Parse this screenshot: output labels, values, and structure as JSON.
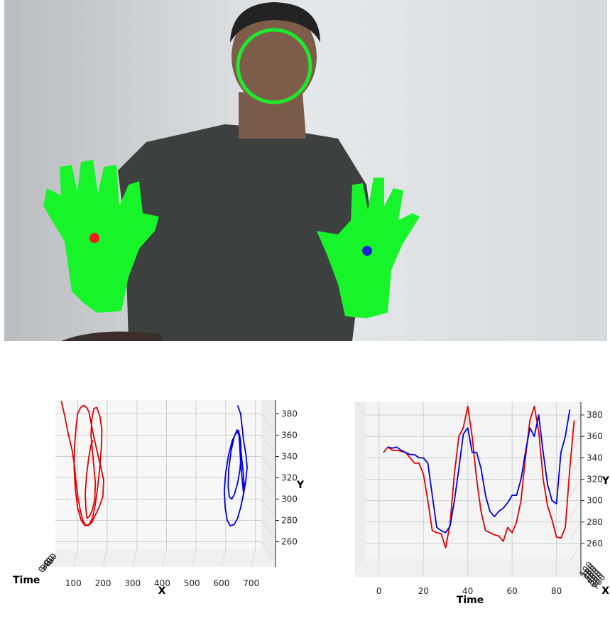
{
  "photo": {
    "colors": {
      "wall": "#dde1e4",
      "shirt": "#3c403f",
      "skin": "#7a5a48",
      "mask": "#17f52a",
      "face_ring": "#1fe82e",
      "left_marker": "#ee1c1c",
      "right_marker": "#1722d8"
    }
  },
  "chart_data": [
    {
      "type": "line3d",
      "view": "front (X vs Y)",
      "xlabel": "X",
      "ylabel": "Y",
      "zlabel": "Time",
      "xticks": [
        "100",
        "200",
        "300",
        "400",
        "500",
        "600",
        "700"
      ],
      "yticks": [
        "260",
        "280",
        "300",
        "320",
        "340",
        "360",
        "380"
      ],
      "zticks": [
        "0",
        "20",
        "40",
        "60",
        "80"
      ],
      "xlim": [
        25,
        720
      ],
      "ylim": [
        253,
        393
      ],
      "grid": true,
      "series": [
        {
          "color": "#e00000",
          "x": [
            45,
            55,
            68,
            82,
            90,
            95,
            102,
            110,
            118,
            125,
            135,
            148,
            160,
            172,
            185,
            188,
            170,
            155,
            145,
            138,
            130,
            120,
            110,
            100,
            95,
            90,
            88,
            92,
            100,
            112,
            125,
            138,
            150,
            160,
            168,
            175,
            180,
            182,
            175,
            165,
            155,
            148,
            145,
            150,
            155,
            160,
            158,
            150,
            140,
            132,
            128,
            126,
            130,
            138,
            146,
            152
          ],
          "y": [
            392,
            380,
            362,
            345,
            330,
            315,
            300,
            288,
            280,
            276,
            275,
            278,
            285,
            292,
            302,
            318,
            340,
            358,
            372,
            382,
            386,
            388,
            386,
            380,
            368,
            350,
            330,
            310,
            292,
            280,
            275,
            276,
            282,
            295,
            312,
            330,
            348,
            365,
            378,
            386,
            385,
            375,
            360,
            345,
            330,
            315,
            300,
            290,
            284,
            282,
            290,
            305,
            322,
            340,
            352,
            355
          ]
        },
        {
          "color": "#0000e0",
          "x": [
            640,
            650,
            655,
            660,
            668,
            672,
            668,
            660,
            650,
            640,
            628,
            615,
            605,
            598,
            595,
            600,
            610,
            622,
            635,
            645,
            650,
            652,
            648,
            640,
            630,
            620,
            612,
            608,
            610,
            618,
            628,
            638,
            645,
            650,
            655,
            660,
            662,
            660,
            655,
            650,
            646,
            643
          ],
          "y": [
            388,
            380,
            368,
            355,
            342,
            330,
            318,
            305,
            292,
            282,
            276,
            275,
            280,
            292,
            308,
            325,
            342,
            355,
            362,
            362,
            355,
            342,
            328,
            315,
            305,
            300,
            302,
            312,
            328,
            345,
            358,
            365,
            360,
            348,
            335,
            322,
            312,
            305,
            320,
            335,
            355,
            365
          ]
        }
      ]
    },
    {
      "type": "line3d",
      "view": "side (Time vs Y)",
      "xlabel": "Time",
      "ylabel": "Y",
      "zlabel": "X",
      "xticks": [
        "0",
        "20",
        "40",
        "60",
        "80"
      ],
      "yticks": [
        "260",
        "280",
        "300",
        "320",
        "340",
        "360",
        "380"
      ],
      "zticks": [
        "100",
        "200",
        "300",
        "400",
        "500",
        "600",
        "700"
      ],
      "xlim": [
        -6,
        91
      ],
      "ylim": [
        246,
        392
      ],
      "grid": true,
      "series": [
        {
          "color": "#e00000",
          "x": [
            2,
            4,
            6,
            8,
            10,
            12,
            14,
            16,
            18,
            20,
            22,
            24,
            26,
            28,
            30,
            32,
            34,
            36,
            38,
            40,
            42,
            44,
            46,
            48,
            50,
            52,
            54,
            56,
            58,
            60,
            62,
            64,
            66,
            68,
            70,
            72,
            74,
            76,
            78,
            80,
            82,
            84,
            86,
            88
          ],
          "y": [
            345,
            350,
            347,
            347,
            346,
            345,
            340,
            335,
            335,
            325,
            300,
            272,
            270,
            269,
            256,
            278,
            325,
            360,
            368,
            388,
            360,
            320,
            290,
            272,
            270,
            268,
            267,
            262,
            275,
            270,
            280,
            300,
            340,
            375,
            388,
            365,
            320,
            295,
            282,
            266,
            265,
            275,
            330,
            375
          ]
        },
        {
          "color": "#0000e0",
          "x": [
            4,
            6,
            8,
            10,
            12,
            14,
            16,
            18,
            20,
            22,
            24,
            26,
            28,
            30,
            32,
            34,
            36,
            38,
            40,
            42,
            44,
            46,
            48,
            50,
            52,
            54,
            56,
            58,
            60,
            62,
            64,
            66,
            68,
            70,
            72,
            74,
            76,
            78,
            80,
            82,
            84,
            86
          ],
          "y": [
            350,
            349,
            350,
            347,
            345,
            343,
            343,
            340,
            340,
            335,
            305,
            275,
            272,
            270,
            276,
            300,
            330,
            362,
            368,
            345,
            345,
            330,
            305,
            290,
            285,
            290,
            293,
            298,
            305,
            305,
            320,
            345,
            368,
            360,
            380,
            345,
            315,
            300,
            297,
            345,
            360,
            385
          ]
        }
      ]
    }
  ]
}
